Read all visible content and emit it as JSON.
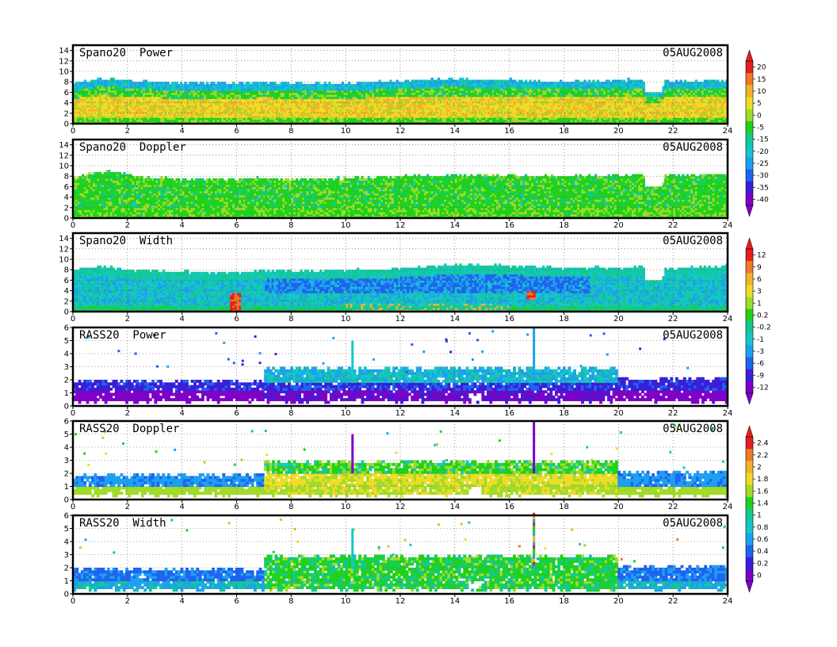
{
  "figure": {
    "colors": {
      "palette": [
        "#7f00c8",
        "#3a1fd8",
        "#1e64f0",
        "#1ea0f0",
        "#14c8c8",
        "#14c896",
        "#1ed21e",
        "#a0dc28",
        "#f0dc28",
        "#f0b428",
        "#f07828",
        "#e61e1e"
      ]
    }
  },
  "chart_data": [
    {
      "type": "heatmap",
      "title": "Spano20  Power",
      "date_label": "05AUG2008",
      "x_ticks": [
        "0",
        "2",
        "4",
        "6",
        "8",
        "10",
        "12",
        "14",
        "16",
        "18",
        "20",
        "22",
        "24"
      ],
      "xlim": [
        0,
        24
      ],
      "y_ticks": [
        "0",
        "2",
        "4",
        "6",
        "8",
        "10",
        "12",
        "14"
      ],
      "ylim": [
        0,
        15
      ],
      "grid": true,
      "data_top": [
        [
          0,
          7.5
        ],
        [
          1,
          8.5
        ],
        [
          2,
          8.2
        ],
        [
          3,
          7.8
        ],
        [
          4,
          7.6
        ],
        [
          5,
          7.5
        ],
        [
          6,
          7.6
        ],
        [
          7,
          7.8
        ],
        [
          8,
          7.6
        ],
        [
          9,
          7.5
        ],
        [
          10,
          7.5
        ],
        [
          11,
          7.8
        ],
        [
          12,
          8.0
        ],
        [
          13,
          8.2
        ],
        [
          14,
          8.4
        ],
        [
          15,
          8.2
        ],
        [
          16,
          8.2
        ],
        [
          17,
          8.0
        ],
        [
          18,
          7.8
        ],
        [
          19,
          8.0
        ],
        [
          20,
          8.2
        ],
        [
          20.9,
          8.2
        ],
        [
          21.0,
          6.0
        ],
        [
          21.6,
          6.0
        ],
        [
          21.7,
          8.0
        ],
        [
          23,
          8.0
        ],
        [
          24,
          8.2
        ]
      ],
      "field": "power",
      "gaps": [
        [
          21.0,
          21.6,
          6.0,
          9.0
        ]
      ],
      "colorbar": {
        "labels": [
          "20",
          "15",
          "10",
          "5",
          "0",
          "-5",
          "-15",
          "-20",
          "-25",
          "-30",
          "-35",
          "-40"
        ]
      }
    },
    {
      "type": "heatmap",
      "title": "Spano20  Doppler",
      "date_label": "05AUG2008",
      "x_ticks": [
        "0",
        "2",
        "4",
        "6",
        "8",
        "10",
        "12",
        "14",
        "16",
        "18",
        "20",
        "22",
        "24"
      ],
      "xlim": [
        0,
        24
      ],
      "y_ticks": [
        "0",
        "2",
        "4",
        "6",
        "8",
        "10",
        "12",
        "14"
      ],
      "ylim": [
        0,
        15
      ],
      "grid": true,
      "data_top": [
        [
          0,
          7.5
        ],
        [
          0.8,
          8.5
        ],
        [
          1.5,
          8.8
        ],
        [
          2,
          8.0
        ],
        [
          3,
          7.5
        ],
        [
          5,
          7.2
        ],
        [
          7,
          7.4
        ],
        [
          8,
          7.2
        ],
        [
          10,
          7.4
        ],
        [
          12,
          7.8
        ],
        [
          14,
          8.0
        ],
        [
          16,
          8.0
        ],
        [
          18,
          7.8
        ],
        [
          20,
          8.0
        ],
        [
          20.9,
          8.0
        ],
        [
          21.0,
          6.0
        ],
        [
          21.6,
          6.0
        ],
        [
          21.7,
          8.0
        ],
        [
          24,
          8.2
        ]
      ],
      "field": "doppler",
      "gaps": [
        [
          21.0,
          21.6,
          6.0,
          9.0
        ]
      ],
      "colorbar": null
    },
    {
      "type": "heatmap",
      "title": "Spano20  Width",
      "date_label": "05AUG2008",
      "x_ticks": [
        "0",
        "2",
        "4",
        "6",
        "8",
        "10",
        "12",
        "14",
        "16",
        "18",
        "20",
        "22",
        "24"
      ],
      "xlim": [
        0,
        24
      ],
      "y_ticks": [
        "0",
        "2",
        "4",
        "6",
        "8",
        "10",
        "12",
        "14"
      ],
      "ylim": [
        0,
        15
      ],
      "grid": true,
      "data_top": [
        [
          0,
          8.0
        ],
        [
          1,
          8.5
        ],
        [
          2,
          7.8
        ],
        [
          3,
          7.6
        ],
        [
          4,
          7.4
        ],
        [
          5,
          7.3
        ],
        [
          6,
          7.3
        ],
        [
          7,
          7.6
        ],
        [
          8,
          7.6
        ],
        [
          10,
          7.8
        ],
        [
          12,
          8.0
        ],
        [
          14,
          8.8
        ],
        [
          16,
          8.6
        ],
        [
          18,
          8.2
        ],
        [
          20,
          8.2
        ],
        [
          20.9,
          8.2
        ],
        [
          21.0,
          6.0
        ],
        [
          21.6,
          6.0
        ],
        [
          21.7,
          8.0
        ],
        [
          24,
          8.6
        ]
      ],
      "field": "width",
      "gaps": [
        [
          21.0,
          21.6,
          6.0,
          9.0
        ]
      ],
      "colorbar": {
        "labels": [
          "12",
          "9",
          "6",
          "3",
          "1",
          "0.2",
          "-0.2",
          "-1",
          "-3",
          "-6",
          "-9",
          "-12"
        ]
      }
    },
    {
      "type": "heatmap",
      "title": "RASS20  Power",
      "date_label": "05AUG2008",
      "x_ticks": [
        "0",
        "2",
        "4",
        "6",
        "8",
        "10",
        "12",
        "14",
        "16",
        "18",
        "20",
        "22",
        "24"
      ],
      "xlim": [
        0,
        24
      ],
      "y_ticks": [
        "0",
        "1",
        "2",
        "3",
        "4",
        "5",
        "6"
      ],
      "ylim": [
        0,
        6
      ],
      "grid": true,
      "field": "rass_power",
      "bands": [
        [
          0,
          7,
          0.4,
          2.0
        ],
        [
          7,
          20,
          0.4,
          3.0
        ],
        [
          20,
          24,
          0.4,
          2.2
        ]
      ],
      "spikes": [
        [
          10.25,
          5.0
        ],
        [
          16.9,
          6.0
        ]
      ],
      "colorbar": null
    },
    {
      "type": "heatmap",
      "title": "RASS20  Doppler",
      "date_label": "05AUG2008",
      "x_ticks": [
        "0",
        "2",
        "4",
        "6",
        "8",
        "10",
        "12",
        "14",
        "16",
        "18",
        "20",
        "22",
        "24"
      ],
      "xlim": [
        0,
        24
      ],
      "y_ticks": [
        "0",
        "1",
        "2",
        "3",
        "4",
        "5",
        "6"
      ],
      "ylim": [
        0,
        6
      ],
      "grid": true,
      "field": "rass_doppler",
      "bands": [
        [
          0,
          7,
          0.4,
          2.0
        ],
        [
          7,
          20,
          0.4,
          3.0
        ],
        [
          20,
          24,
          0.4,
          2.2
        ]
      ],
      "spikes": [
        [
          10.25,
          5.0
        ],
        [
          16.9,
          6.0
        ]
      ],
      "colorbar": {
        "labels": [
          "2.4",
          "2.2",
          "2",
          "1.8",
          "1.6",
          "1.4",
          "1",
          "0.8",
          "0.6",
          "0.4",
          "0.2",
          "0"
        ]
      }
    },
    {
      "type": "heatmap",
      "title": "RASS20  Width",
      "date_label": "05AUG2008",
      "x_ticks": [
        "0",
        "2",
        "4",
        "6",
        "8",
        "10",
        "12",
        "14",
        "16",
        "18",
        "20",
        "22",
        "24"
      ],
      "xlim": [
        0,
        24
      ],
      "y_ticks": [
        "0",
        "1",
        "2",
        "3",
        "4",
        "5",
        "6"
      ],
      "ylim": [
        0,
        6
      ],
      "grid": true,
      "field": "rass_width",
      "bands": [
        [
          0,
          7,
          0.4,
          2.0
        ],
        [
          7,
          20,
          0.4,
          3.0
        ],
        [
          20,
          24,
          0.4,
          2.2
        ]
      ],
      "spikes": [
        [
          10.25,
          5.0
        ],
        [
          16.9,
          6.0
        ]
      ],
      "colorbar": null
    }
  ]
}
